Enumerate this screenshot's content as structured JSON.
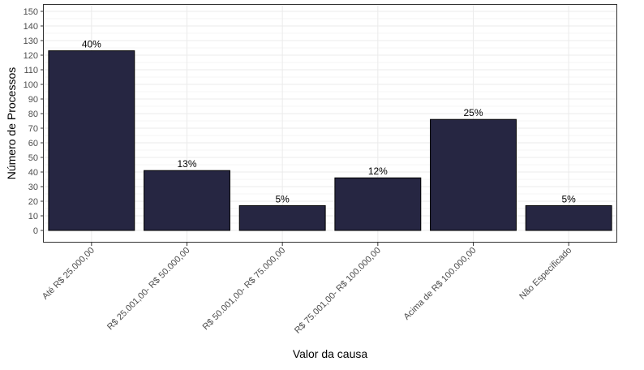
{
  "chart_data": {
    "type": "bar",
    "categories": [
      "Até R$ 25.000,00",
      "R$ 25.001,00- R$ 50.000,00",
      "R$ 50.001,00- R$ 75.000,00",
      "R$ 75.001,00- R$ 100.000,00",
      "Acima de R$ 100.000,00",
      "Não Especificado"
    ],
    "values": [
      123,
      41,
      17,
      36,
      76,
      17
    ],
    "data_labels": [
      "40%",
      "13%",
      "5%",
      "12%",
      "25%",
      "5%"
    ],
    "title": "",
    "xlabel": "Valor da causa",
    "ylabel": "Número de Processos",
    "ylim": [
      0,
      150
    ],
    "yticks": [
      0,
      10,
      20,
      30,
      40,
      50,
      60,
      70,
      80,
      90,
      100,
      110,
      120,
      130,
      140,
      150
    ],
    "grid": true,
    "legend": "none",
    "bar_color": "#262642",
    "bar_edge_color": "#000000",
    "gridline_color": "#ebebeb"
  }
}
